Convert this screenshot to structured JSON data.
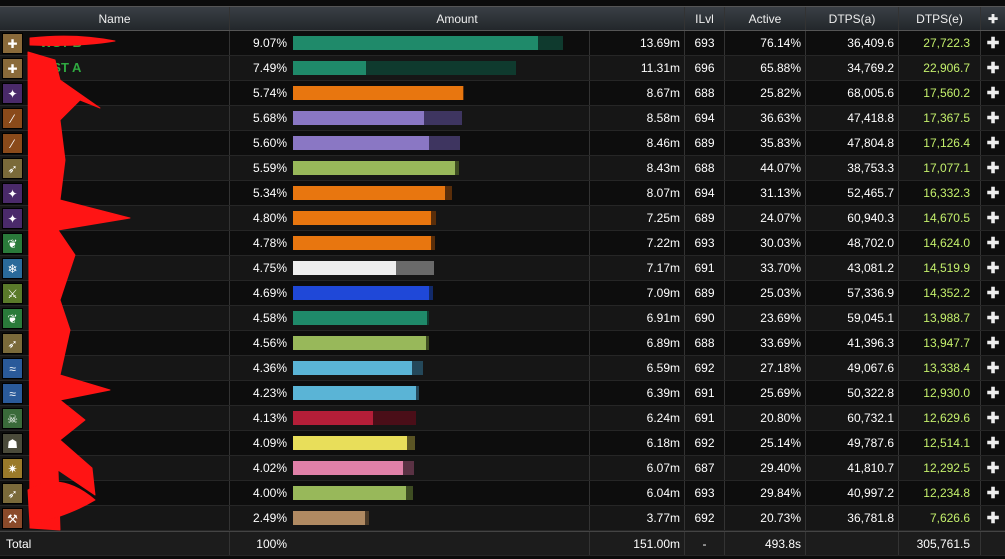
{
  "header": {
    "name": "Name",
    "amount": "Amount",
    "ilvl": "ILvl",
    "active": "Active",
    "dtps_a": "DTPS(a)",
    "dtps_e": "DTPS(e)",
    "plus": "✚"
  },
  "rows": [
    {
      "name": "WST B",
      "icon": "bandage-icon",
      "icon_color": "#8a6a3a",
      "pct": "9.07%",
      "bar_fraction": 0.907,
      "track_fraction": 1.0,
      "bar_color": "#1f8a6a",
      "track_color": "#0f3a2e",
      "amount": "13.69m",
      "ilvl": "693",
      "active": "76.14%",
      "dtps_a": "36,409.6",
      "dtps_e": "27,722.3"
    },
    {
      "name": "WST A",
      "icon": "bandage-icon",
      "icon_color": "#8a6a3a",
      "pct": "7.49%",
      "bar_fraction": 0.27,
      "track_fraction": 0.826,
      "bar_color": "#1f8a6a",
      "track_color": "#0f3a2e",
      "amount": "11.31m",
      "ilvl": "696",
      "active": "65.88%",
      "dtps_a": "34,769.2",
      "dtps_e": "22,906.7"
    },
    {
      "name": "",
      "icon": "shadow-bolt-icon",
      "icon_color": "#4a2a6a",
      "pct": "5.74%",
      "bar_fraction": 0.63,
      "track_fraction": 0.633,
      "bar_color": "#e8760f",
      "track_color": "#5a2e0a",
      "amount": "8.67m",
      "ilvl": "688",
      "active": "25.82%",
      "dtps_a": "68,005.6",
      "dtps_e": "17,560.2"
    },
    {
      "name": "",
      "icon": "fire-strike-icon",
      "icon_color": "#8a4a1a",
      "pct": "5.68%",
      "bar_fraction": 0.485,
      "track_fraction": 0.626,
      "bar_color": "#8a77c4",
      "track_color": "#3e3560",
      "amount": "8.58m",
      "ilvl": "694",
      "active": "36.63%",
      "dtps_a": "47,418.8",
      "dtps_e": "17,367.5"
    },
    {
      "name": "",
      "icon": "fire-strike-icon",
      "icon_color": "#8a4a1a",
      "pct": "5.60%",
      "bar_fraction": 0.503,
      "track_fraction": 0.617,
      "bar_color": "#8a77c4",
      "track_color": "#3e3560",
      "amount": "8.46m",
      "ilvl": "689",
      "active": "35.83%",
      "dtps_a": "47,804.8",
      "dtps_e": "17,126.4"
    },
    {
      "name": "",
      "icon": "hunter-arrow-icon",
      "icon_color": "#7a6a3a",
      "pct": "5.59%",
      "bar_fraction": 0.6,
      "track_fraction": 0.616,
      "bar_color": "#98b85a",
      "track_color": "#3e4d22",
      "amount": "8.43m",
      "ilvl": "688",
      "active": "44.07%",
      "dtps_a": "38,753.3",
      "dtps_e": "17,077.1"
    },
    {
      "name": "",
      "icon": "shadow-bolt-icon",
      "icon_color": "#4a2a6a",
      "pct": "5.34%",
      "bar_fraction": 0.562,
      "track_fraction": 0.589,
      "bar_color": "#e8760f",
      "track_color": "#5a2e0a",
      "amount": "8.07m",
      "ilvl": "694",
      "active": "31.13%",
      "dtps_a": "52,465.7",
      "dtps_e": "16,332.3"
    },
    {
      "name": "",
      "icon": "shadow-bolt-icon",
      "icon_color": "#4a2a6a",
      "pct": "4.80%",
      "bar_fraction": 0.51,
      "track_fraction": 0.529,
      "bar_color": "#e8760f",
      "track_color": "#5a2e0a",
      "amount": "7.25m",
      "ilvl": "689",
      "active": "24.07%",
      "dtps_a": "60,940.3",
      "dtps_e": "14,670.5"
    },
    {
      "name": "",
      "icon": "nature-leaf-icon",
      "icon_color": "#2a7a3a",
      "pct": "4.78%",
      "bar_fraction": 0.51,
      "track_fraction": 0.527,
      "bar_color": "#e8760f",
      "track_color": "#5a2e0a",
      "amount": "7.22m",
      "ilvl": "693",
      "active": "30.03%",
      "dtps_a": "48,702.0",
      "dtps_e": "14,624.0"
    },
    {
      "name": "",
      "icon": "frost-orb-icon",
      "icon_color": "#2a6a9a",
      "pct": "4.75%",
      "bar_fraction": 0.382,
      "track_fraction": 0.523,
      "bar_color": "#eeeeee",
      "track_color": "#6a6a6a",
      "amount": "7.17m",
      "ilvl": "691",
      "active": "33.70%",
      "dtps_a": "43,081.2",
      "dtps_e": "14,519.9"
    },
    {
      "name": "",
      "icon": "claw-icon",
      "icon_color": "#5a7a2a",
      "pct": "4.69%",
      "bar_fraction": 0.505,
      "track_fraction": 0.517,
      "bar_color": "#1f48d8",
      "track_color": "#122a6a",
      "amount": "7.09m",
      "ilvl": "689",
      "active": "25.03%",
      "dtps_a": "57,336.9",
      "dtps_e": "14,352.2"
    },
    {
      "name": "",
      "icon": "nature-leaf-icon",
      "icon_color": "#2a7a3a",
      "pct": "4.58%",
      "bar_fraction": 0.495,
      "track_fraction": 0.505,
      "bar_color": "#1f8a6a",
      "track_color": "#0f3a2e",
      "amount": "6.91m",
      "ilvl": "690",
      "active": "23.69%",
      "dtps_a": "59,045.1",
      "dtps_e": "13,988.7"
    },
    {
      "name": "",
      "icon": "hunter-arrow-icon",
      "icon_color": "#7a6a3a",
      "pct": "4.56%",
      "bar_fraction": 0.492,
      "track_fraction": 0.503,
      "bar_color": "#98b85a",
      "track_color": "#3e4d22",
      "amount": "6.89m",
      "ilvl": "688",
      "active": "33.69%",
      "dtps_a": "41,396.3",
      "dtps_e": "13,947.7"
    },
    {
      "name": "",
      "icon": "water-wave-icon",
      "icon_color": "#2a5a9a",
      "pct": "4.36%",
      "bar_fraction": 0.44,
      "track_fraction": 0.48,
      "bar_color": "#5ab4d6",
      "track_color": "#24485a",
      "amount": "6.59m",
      "ilvl": "692",
      "active": "27.18%",
      "dtps_a": "49,067.6",
      "dtps_e": "13,338.4"
    },
    {
      "name": "",
      "icon": "water-wave-icon",
      "icon_color": "#2a5a9a",
      "pct": "4.23%",
      "bar_fraction": 0.456,
      "track_fraction": 0.466,
      "bar_color": "#5ab4d6",
      "track_color": "#24485a",
      "amount": "6.39m",
      "ilvl": "691",
      "active": "25.69%",
      "dtps_a": "50,322.8",
      "dtps_e": "12,930.0"
    },
    {
      "name": "",
      "icon": "skull-icon",
      "icon_color": "#3a6a3a",
      "pct": "4.13%",
      "bar_fraction": 0.295,
      "track_fraction": 0.455,
      "bar_color": "#b41e38",
      "track_color": "#4a0e18",
      "amount": "6.24m",
      "ilvl": "691",
      "active": "20.80%",
      "dtps_a": "60,732.1",
      "dtps_e": "12,629.6"
    },
    {
      "name": "",
      "icon": "hooded-figure-icon",
      "icon_color": "#4a4a3a",
      "pct": "4.09%",
      "bar_fraction": 0.423,
      "track_fraction": 0.452,
      "bar_color": "#e8de5a",
      "track_color": "#5a5424",
      "amount": "6.18m",
      "ilvl": "692",
      "active": "25.14%",
      "dtps_a": "49,787.6",
      "dtps_e": "12,514.1"
    },
    {
      "name": "",
      "icon": "holy-light-icon",
      "icon_color": "#9a7a2a",
      "pct": "4.02%",
      "bar_fraction": 0.408,
      "track_fraction": 0.447,
      "bar_color": "#e080a8",
      "track_color": "#5a3244",
      "amount": "6.07m",
      "ilvl": "687",
      "active": "29.40%",
      "dtps_a": "41,810.7",
      "dtps_e": "12,292.5"
    },
    {
      "name": "",
      "icon": "hunter-arrow-icon",
      "icon_color": "#7a6a3a",
      "pct": "4.00%",
      "bar_fraction": 0.42,
      "track_fraction": 0.443,
      "bar_color": "#98b85a",
      "track_color": "#3e4d22",
      "amount": "6.04m",
      "ilvl": "693",
      "active": "29.84%",
      "dtps_a": "40,997.2",
      "dtps_e": "12,234.8"
    },
    {
      "name": "",
      "icon": "axe-icon",
      "icon_color": "#8a4a2a",
      "pct": "2.49%",
      "bar_fraction": 0.265,
      "track_fraction": 0.28,
      "bar_color": "#b08a62",
      "track_color": "#4a3a28",
      "amount": "3.77m",
      "ilvl": "692",
      "active": "20.73%",
      "dtps_a": "36,781.8",
      "dtps_e": "7,626.6"
    }
  ],
  "total": {
    "label": "Total",
    "pct": "100%",
    "amount": "151.00m",
    "ilvl": "-",
    "active": "493.8s",
    "dtps_a": "",
    "dtps_e": "305,761.5"
  },
  "colors": {
    "header_bg": "#2b2f33",
    "dtps_e_text": "#c4f06c",
    "name_text": "#2fa840",
    "redaction": "#ff1414"
  }
}
